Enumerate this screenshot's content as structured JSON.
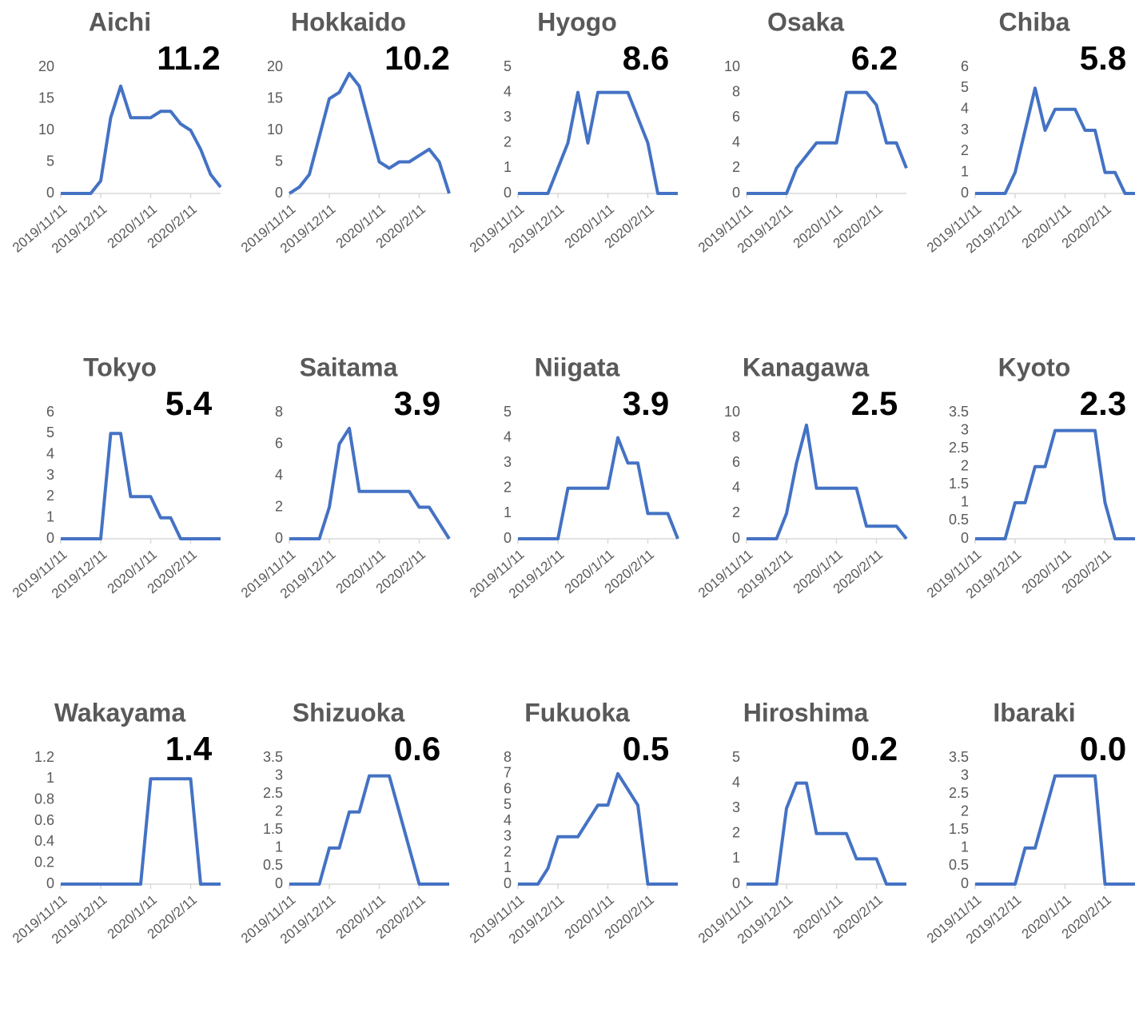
{
  "chart_data": [
    {
      "type": "line",
      "title": "Aichi",
      "annotation": "11.2",
      "color": "#4472c4",
      "categories": [
        "2019/11/11",
        null,
        null,
        null,
        "2019/12/11",
        null,
        null,
        null,
        null,
        "2020/1/11",
        null,
        null,
        null,
        "2020/2/11",
        null,
        null,
        null
      ],
      "values": [
        0,
        0,
        0,
        0,
        2,
        12,
        17,
        12,
        12,
        12,
        13,
        13,
        11,
        10,
        7,
        3,
        1
      ],
      "ylim": [
        0,
        20
      ],
      "yticks": [
        0,
        5,
        10,
        15,
        20
      ]
    },
    {
      "type": "line",
      "title": "Hokkaido",
      "annotation": "10.2",
      "color": "#4472c4",
      "categories": [
        "2019/11/11",
        null,
        null,
        null,
        "2019/12/11",
        null,
        null,
        null,
        null,
        "2020/1/11",
        null,
        null,
        null,
        "2020/2/11",
        null,
        null,
        null
      ],
      "values": [
        0,
        1,
        3,
        9,
        15,
        16,
        19,
        17,
        11,
        5,
        4,
        5,
        5,
        6,
        7,
        5,
        0
      ],
      "ylim": [
        0,
        20
      ],
      "yticks": [
        0,
        5,
        10,
        15,
        20
      ]
    },
    {
      "type": "line",
      "title": "Hyogo",
      "annotation": "8.6",
      "color": "#4472c4",
      "categories": [
        "2019/11/11",
        null,
        null,
        null,
        "2019/12/11",
        null,
        null,
        null,
        null,
        "2020/1/11",
        null,
        null,
        null,
        "2020/2/11",
        null,
        null,
        null
      ],
      "values": [
        0,
        0,
        0,
        0,
        1,
        2,
        4,
        2,
        4,
        4,
        4,
        4,
        3,
        2,
        0,
        0,
        0
      ],
      "ylim": [
        0,
        5
      ],
      "yticks": [
        0,
        1,
        2,
        3,
        4,
        5
      ]
    },
    {
      "type": "line",
      "title": "Osaka",
      "annotation": "6.2",
      "color": "#4472c4",
      "categories": [
        "2019/11/11",
        null,
        null,
        null,
        "2019/12/11",
        null,
        null,
        null,
        null,
        "2020/1/11",
        null,
        null,
        null,
        "2020/2/11",
        null,
        null,
        null
      ],
      "values": [
        0,
        0,
        0,
        0,
        0,
        2,
        3,
        4,
        4,
        4,
        8,
        8,
        8,
        7,
        4,
        4,
        2
      ],
      "ylim": [
        0,
        10
      ],
      "yticks": [
        0,
        2,
        4,
        6,
        8,
        10
      ]
    },
    {
      "type": "line",
      "title": "Chiba",
      "annotation": "5.8",
      "color": "#4472c4",
      "categories": [
        "2019/11/11",
        null,
        null,
        null,
        "2019/12/11",
        null,
        null,
        null,
        null,
        "2020/1/11",
        null,
        null,
        null,
        "2020/2/11",
        null,
        null,
        null
      ],
      "values": [
        0,
        0,
        0,
        0,
        1,
        3,
        5,
        3,
        4,
        4,
        4,
        3,
        3,
        1,
        1,
        0,
        0
      ],
      "ylim": [
        0,
        6
      ],
      "yticks": [
        0,
        1,
        2,
        3,
        4,
        5,
        6
      ]
    },
    {
      "type": "line",
      "title": "Tokyo",
      "annotation": "5.4",
      "color": "#4472c4",
      "categories": [
        "2019/11/11",
        null,
        null,
        null,
        "2019/12/11",
        null,
        null,
        null,
        null,
        "2020/1/11",
        null,
        null,
        null,
        "2020/2/11",
        null,
        null,
        null
      ],
      "values": [
        0,
        0,
        0,
        0,
        0,
        5,
        5,
        2,
        2,
        2,
        1,
        1,
        0,
        0,
        0,
        0,
        0
      ],
      "ylim": [
        0,
        6
      ],
      "yticks": [
        0,
        1,
        2,
        3,
        4,
        5,
        6
      ]
    },
    {
      "type": "line",
      "title": "Saitama",
      "annotation": "3.9",
      "color": "#4472c4",
      "categories": [
        "2019/11/11",
        null,
        null,
        null,
        "2019/12/11",
        null,
        null,
        null,
        null,
        "2020/1/11",
        null,
        null,
        null,
        "2020/2/11",
        null,
        null,
        null
      ],
      "values": [
        0,
        0,
        0,
        0,
        2,
        6,
        7,
        3,
        3,
        3,
        3,
        3,
        3,
        2,
        2,
        1,
        0
      ],
      "ylim": [
        0,
        8
      ],
      "yticks": [
        0,
        2,
        4,
        6,
        8
      ]
    },
    {
      "type": "line",
      "title": "Niigata",
      "annotation": "3.9",
      "color": "#4472c4",
      "categories": [
        "2019/11/11",
        null,
        null,
        null,
        "2019/12/11",
        null,
        null,
        null,
        null,
        "2020/1/11",
        null,
        null,
        null,
        "2020/2/11",
        null,
        null,
        null
      ],
      "values": [
        0,
        0,
        0,
        0,
        0,
        2,
        2,
        2,
        2,
        2,
        4,
        3,
        3,
        1,
        1,
        1,
        0
      ],
      "ylim": [
        0,
        5
      ],
      "yticks": [
        0,
        1,
        2,
        3,
        4,
        5
      ]
    },
    {
      "type": "line",
      "title": "Kanagawa",
      "annotation": "2.5",
      "color": "#4472c4",
      "categories": [
        "2019/11/11",
        null,
        null,
        null,
        "2019/12/11",
        null,
        null,
        null,
        null,
        "2020/1/11",
        null,
        null,
        null,
        "2020/2/11",
        null,
        null,
        null
      ],
      "values": [
        0,
        0,
        0,
        0,
        2,
        6,
        9,
        4,
        4,
        4,
        4,
        4,
        1,
        1,
        1,
        1,
        0
      ],
      "ylim": [
        0,
        10
      ],
      "yticks": [
        0,
        2,
        4,
        6,
        8,
        10
      ]
    },
    {
      "type": "line",
      "title": "Kyoto",
      "annotation": "2.3",
      "color": "#4472c4",
      "categories": [
        "2019/11/11",
        null,
        null,
        null,
        "2019/12/11",
        null,
        null,
        null,
        null,
        "2020/1/11",
        null,
        null,
        null,
        "2020/2/11",
        null,
        null,
        null
      ],
      "values": [
        0,
        0,
        0,
        0,
        1,
        1,
        2,
        2,
        3,
        3,
        3,
        3,
        3,
        1,
        0,
        0,
        0
      ],
      "ylim": [
        0,
        3.5
      ],
      "yticks": [
        0,
        0.5,
        1,
        1.5,
        2,
        2.5,
        3,
        3.5
      ]
    },
    {
      "type": "line",
      "title": "Wakayama",
      "annotation": "1.4",
      "color": "#4472c4",
      "categories": [
        "2019/11/11",
        null,
        null,
        null,
        "2019/12/11",
        null,
        null,
        null,
        null,
        "2020/1/11",
        null,
        null,
        null,
        "2020/2/11",
        null,
        null,
        null
      ],
      "values": [
        0,
        0,
        0,
        0,
        0,
        0,
        0,
        0,
        0,
        1,
        1,
        1,
        1,
        1,
        0,
        0,
        0
      ],
      "ylim": [
        0,
        1.2
      ],
      "yticks": [
        0,
        0.2,
        0.4,
        0.6,
        0.8,
        1,
        1.2
      ]
    },
    {
      "type": "line",
      "title": "Shizuoka",
      "annotation": "0.6",
      "color": "#4472c4",
      "categories": [
        "2019/11/11",
        null,
        null,
        null,
        "2019/12/11",
        null,
        null,
        null,
        null,
        "2020/1/11",
        null,
        null,
        null,
        "2020/2/11",
        null,
        null,
        null
      ],
      "values": [
        0,
        0,
        0,
        0,
        1,
        1,
        2,
        2,
        3,
        3,
        3,
        2,
        1,
        0,
        0,
        0,
        0
      ],
      "ylim": [
        0,
        3.5
      ],
      "yticks": [
        0,
        0.5,
        1,
        1.5,
        2,
        2.5,
        3,
        3.5
      ]
    },
    {
      "type": "line",
      "title": "Fukuoka",
      "annotation": "0.5",
      "color": "#4472c4",
      "categories": [
        "2019/11/11",
        null,
        null,
        null,
        "2019/12/11",
        null,
        null,
        null,
        null,
        "2020/1/11",
        null,
        null,
        null,
        "2020/2/11",
        null,
        null,
        null
      ],
      "values": [
        0,
        0,
        0,
        1,
        3,
        3,
        3,
        4,
        5,
        5,
        7,
        6,
        5,
        0,
        0,
        0,
        0
      ],
      "ylim": [
        0,
        8
      ],
      "yticks": [
        0,
        1,
        2,
        3,
        4,
        5,
        6,
        7,
        8
      ]
    },
    {
      "type": "line",
      "title": "Hiroshima",
      "annotation": "0.2",
      "color": "#4472c4",
      "categories": [
        "2019/11/11",
        null,
        null,
        null,
        "2019/12/11",
        null,
        null,
        null,
        null,
        "2020/1/11",
        null,
        null,
        null,
        "2020/2/11",
        null,
        null,
        null
      ],
      "values": [
        0,
        0,
        0,
        0,
        3,
        4,
        4,
        2,
        2,
        2,
        2,
        1,
        1,
        1,
        0,
        0,
        0
      ],
      "ylim": [
        0,
        5
      ],
      "yticks": [
        0,
        1,
        2,
        3,
        4,
        5
      ]
    },
    {
      "type": "line",
      "title": "Ibaraki",
      "annotation": "0.0",
      "color": "#4472c4",
      "categories": [
        "2019/11/11",
        null,
        null,
        null,
        "2019/12/11",
        null,
        null,
        null,
        null,
        "2020/1/11",
        null,
        null,
        null,
        "2020/2/11",
        null,
        null,
        null
      ],
      "values": [
        0,
        0,
        0,
        0,
        0,
        1,
        1,
        2,
        3,
        3,
        3,
        3,
        3,
        0,
        0,
        0,
        0
      ],
      "ylim": [
        0,
        3.5
      ],
      "yticks": [
        0,
        0.5,
        1,
        1.5,
        2,
        2.5,
        3,
        3.5
      ]
    }
  ]
}
